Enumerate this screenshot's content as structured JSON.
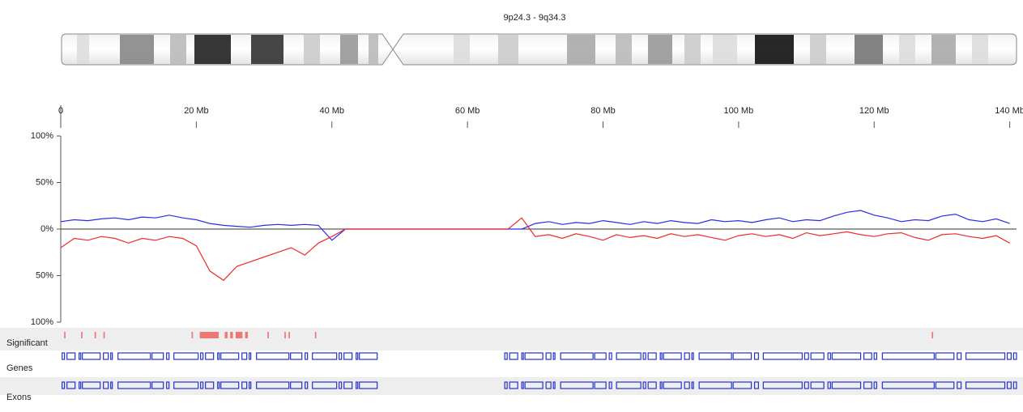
{
  "region_label": "9p24.3 - 9q34.3",
  "chart_data": {
    "type": "line",
    "x": [
      0,
      2,
      4,
      6,
      8,
      10,
      12,
      14,
      16,
      18,
      20,
      22,
      24,
      26,
      28,
      30,
      32,
      34,
      36,
      38,
      40,
      42,
      44,
      46,
      48,
      50,
      52,
      54,
      56,
      58,
      60,
      62,
      64,
      66,
      68,
      70,
      72,
      74,
      76,
      78,
      80,
      82,
      84,
      86,
      88,
      90,
      92,
      94,
      96,
      98,
      100,
      102,
      104,
      106,
      108,
      110,
      112,
      114,
      116,
      118,
      120,
      122,
      124,
      126,
      128,
      130,
      132,
      134,
      136,
      138,
      140
    ],
    "series": [
      {
        "color": "#2a2aee",
        "values": [
          8,
          10,
          9,
          11,
          12,
          10,
          13,
          12,
          15,
          12,
          10,
          6,
          4,
          3,
          2,
          4,
          5,
          4,
          5,
          4,
          -12,
          0,
          0,
          0,
          0,
          0,
          0,
          0,
          0,
          0,
          0,
          0,
          0,
          0,
          0,
          6,
          8,
          5,
          7,
          6,
          9,
          7,
          5,
          8,
          6,
          9,
          7,
          6,
          10,
          8,
          9,
          7,
          10,
          12,
          8,
          10,
          9,
          14,
          18,
          20,
          15,
          12,
          8,
          10,
          9,
          14,
          16,
          10,
          8,
          11,
          6
        ]
      },
      {
        "color": "#ee2a2a",
        "values": [
          -20,
          -10,
          -12,
          -8,
          -10,
          -15,
          -10,
          -12,
          -8,
          -10,
          -18,
          -45,
          -55,
          -40,
          -35,
          -30,
          -25,
          -20,
          -28,
          -15,
          -8,
          0,
          0,
          0,
          0,
          0,
          0,
          0,
          0,
          0,
          0,
          0,
          0,
          0,
          12,
          -8,
          -6,
          -10,
          -5,
          -8,
          -12,
          -6,
          -9,
          -7,
          -10,
          -5,
          -8,
          -6,
          -9,
          -12,
          -7,
          -5,
          -8,
          -6,
          -10,
          -4,
          -7,
          -5,
          -3,
          -6,
          -8,
          -5,
          -4,
          -9,
          -12,
          -6,
          -5,
          -8,
          -10,
          -7,
          -15
        ]
      }
    ],
    "xlim": [
      0,
      141
    ],
    "xticks": [
      {
        "value": 0,
        "label": "0"
      },
      {
        "value": 20,
        "label": "20 Mb"
      },
      {
        "value": 40,
        "label": "40 Mb"
      },
      {
        "value": 60,
        "label": "60 Mb"
      },
      {
        "value": 80,
        "label": "80 Mb"
      },
      {
        "value": 100,
        "label": "100 Mb"
      },
      {
        "value": 120,
        "label": "120 Mb"
      },
      {
        "value": 140,
        "label": "140 Mb"
      }
    ],
    "ylim": [
      -100,
      100
    ],
    "yticks": [
      {
        "value": 100,
        "label": "100%"
      },
      {
        "value": 50,
        "label": "50%"
      },
      {
        "value": 0,
        "label": "0%"
      },
      {
        "value": -50,
        "label": "50%"
      },
      {
        "value": -100,
        "label": "100%"
      }
    ]
  },
  "tracks": {
    "significant": {
      "label": "Significant",
      "color": "#ee7777",
      "regions": [
        [
          0.5,
          0.7
        ],
        [
          3,
          3.2
        ],
        [
          5,
          5.2
        ],
        [
          6.3,
          6.5
        ],
        [
          19.3,
          19.5
        ],
        [
          20.5,
          23.3
        ],
        [
          24.2,
          24.6
        ],
        [
          25,
          25.4
        ],
        [
          25.8,
          26.8
        ],
        [
          27.2,
          27.6
        ],
        [
          30.5,
          30.7
        ],
        [
          33,
          33.2
        ],
        [
          33.6,
          33.8
        ],
        [
          37.5,
          37.7
        ],
        [
          128.5,
          128.7
        ]
      ]
    },
    "genes": {
      "label": "Genes",
      "color": "#2233cc",
      "clusters": [
        [
          0.2,
          47
        ],
        [
          65.5,
          141
        ]
      ]
    },
    "exons": {
      "label": "Exons",
      "color": "#2233cc",
      "clusters": [
        [
          0.2,
          47
        ],
        [
          65.5,
          141
        ]
      ]
    }
  }
}
